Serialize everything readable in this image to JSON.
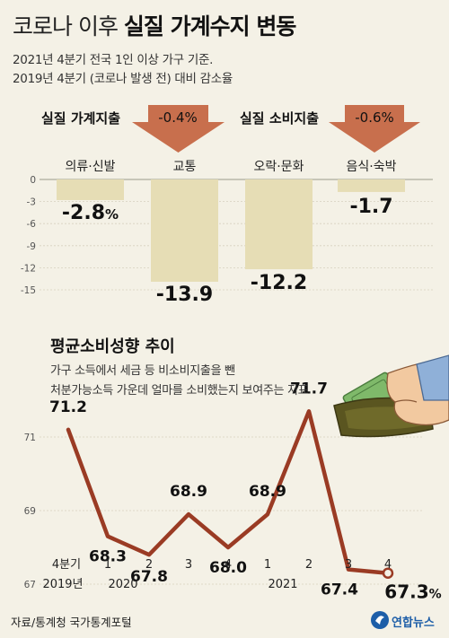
{
  "header": {
    "title_light": "코로나 이후 ",
    "title_bold": "실질 가계수지 변동",
    "subtitle_line1": "2021년 4분기 전국 1인 이상 가구 기준.",
    "subtitle_line2": "2019년 4분기 (코로나 발생 전) 대비 감소율"
  },
  "highlights": [
    {
      "label": "실질 가계지출",
      "value": "-0.4%"
    },
    {
      "label": "실질 소비지출",
      "value": "-0.6%"
    }
  ],
  "section2": {
    "title": "평균소비성향 추이",
    "sub_line1": "가구 소득에서 세금 등 비소비지출을 뺀",
    "sub_line2": "처분가능소득 가운데 얼마를 소비했는지 보여주는 지표"
  },
  "footer": {
    "source": "자료/통계청 국가통계포털",
    "logo": "연합뉴스"
  },
  "colors": {
    "background": "#f4f1e6",
    "bar": "#e6ddb5",
    "arrow": "#c86f4d",
    "line": "#9a3b24",
    "text": "#222222"
  },
  "chart_data": [
    {
      "type": "bar",
      "categories": [
        "의류·신발",
        "교통",
        "오락·문화",
        "음식·숙박"
      ],
      "values": [
        -2.8,
        -13.9,
        -12.2,
        -1.7
      ],
      "value_labels": [
        "-2.8%",
        "-13.9",
        "-12.2",
        "-1.7"
      ],
      "yticks": [
        "0",
        "-3",
        "-6",
        "-9",
        "-12",
        "-15"
      ],
      "ylim": [
        -15,
        0
      ],
      "grid": true
    },
    {
      "type": "line",
      "categories": [
        "4분기",
        "1",
        "2",
        "3",
        "4",
        "1",
        "2",
        "3",
        "4"
      ],
      "year_labels": [
        "2019년",
        "2020",
        "2021"
      ],
      "values": [
        71.2,
        68.3,
        67.8,
        68.9,
        68.0,
        68.9,
        71.7,
        67.4,
        67.3
      ],
      "value_labels": [
        "71.2",
        "68.3",
        "67.8",
        "68.9",
        "68.0",
        "68.9",
        "71.7",
        "67.4",
        "67.3%"
      ],
      "yticks": [
        "71",
        "69",
        "67"
      ],
      "ylim": [
        66.4,
        72.4
      ],
      "grid": true
    }
  ]
}
